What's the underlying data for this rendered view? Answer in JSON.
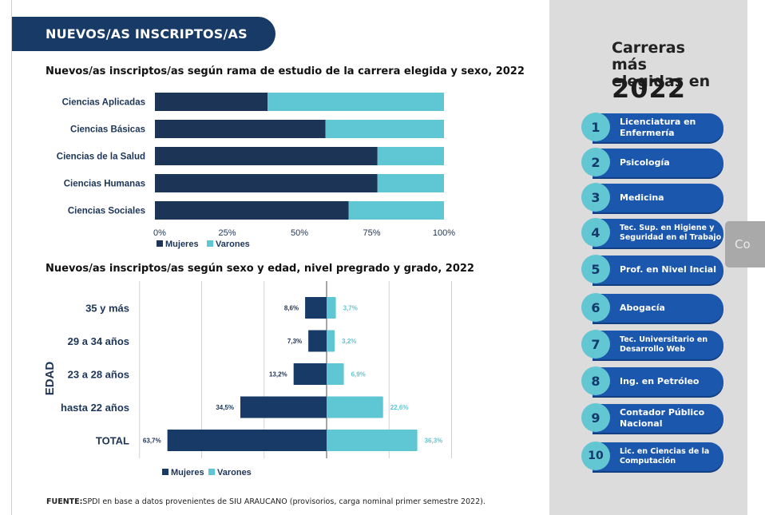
{
  "header": {
    "title": "NUEVOS/AS INSCRIPTOS/AS"
  },
  "chart1_title": "Nuevos/as inscriptos/as según rama de estudio de la carrera elegida y sexo, 2022",
  "chart2_title": "Nuevos/as inscriptos/as según sexo y edad, nivel pregrado y grado, 2022",
  "colors": {
    "mujeres": "#1c3557",
    "varones": "#5fc6d4",
    "banner": "#173a66",
    "pill": "#1b57ad"
  },
  "chart_data": [
    {
      "type": "bar",
      "orientation": "horizontal-stacked-100",
      "title": "Nuevos/as inscriptos/as según rama de estudio de la carrera elegida y sexo, 2022",
      "categories": [
        "Ciencias Aplicadas",
        "Ciencias Básicas",
        "Ciencias de la Salud",
        "Ciencias Humanas",
        "Ciencias Sociales"
      ],
      "series": [
        {
          "name": "Mujeres",
          "values": [
            39,
            59,
            77,
            77,
            67
          ]
        },
        {
          "name": "Varones",
          "values": [
            61,
            41,
            23,
            23,
            33
          ]
        }
      ],
      "xticks": [
        "0%",
        "25%",
        "50%",
        "75%",
        "100%"
      ],
      "xlim": [
        0,
        100
      ],
      "legend": [
        "Mujeres",
        "Varones"
      ],
      "legend_position": "bottom-left",
      "grid": false
    },
    {
      "type": "bar",
      "orientation": "population-pyramid",
      "title": "Nuevos/as inscriptos/as según sexo y edad, nivel pregrado y grado, 2022",
      "ylabel": "EDAD",
      "categories": [
        "35 y más",
        "29 a 34 años",
        "23 a 28 años",
        "hasta 22 años",
        "TOTAL"
      ],
      "series": [
        {
          "name": "Mujeres",
          "values": [
            8.6,
            7.3,
            13.2,
            34.5,
            63.7
          ],
          "labels": [
            "8,6%",
            "7,3%",
            "13,2%",
            "34,5%",
            "63,7%"
          ]
        },
        {
          "name": "Varones",
          "values": [
            3.7,
            3.2,
            6.9,
            22.6,
            36.3
          ],
          "labels": [
            "3,7%",
            "3,2%",
            "6,9%",
            "22,6%",
            "36,3%"
          ]
        }
      ],
      "xlim": [
        -75,
        50
      ],
      "gridlines": [
        -50,
        -25,
        0,
        25,
        50
      ],
      "legend": [
        "Mujeres",
        "Varones"
      ],
      "legend_position": "bottom",
      "grid": true
    }
  ],
  "source": {
    "label": "FUENTE:",
    "text": "SPDI en base a datos provenientes de SIU ARAUCANO (provisorios, carga nominal primer semestre 2022)."
  },
  "sidebar": {
    "title": "Carreras más elegidas en",
    "year": "2022",
    "careers": [
      {
        "rank": "1",
        "name": "Licenciatura en Enfermería"
      },
      {
        "rank": "2",
        "name": "Psicología"
      },
      {
        "rank": "3",
        "name": "Medicina"
      },
      {
        "rank": "4",
        "name": "Tec. Sup. en Higiene y Seguridad en el Trabajo"
      },
      {
        "rank": "5",
        "name": "Prof. en Nivel Incial"
      },
      {
        "rank": "6",
        "name": "Abogacía"
      },
      {
        "rank": "7",
        "name": "Tec. Universitario en Desarrollo Web"
      },
      {
        "rank": "8",
        "name": "Ing. en Petróleo"
      },
      {
        "rank": "9",
        "name": "Contador Público Nacional"
      },
      {
        "rank": "10",
        "name": "Lic. en Ciencias de la Computación"
      }
    ]
  },
  "overlay": {
    "label": "Co"
  }
}
